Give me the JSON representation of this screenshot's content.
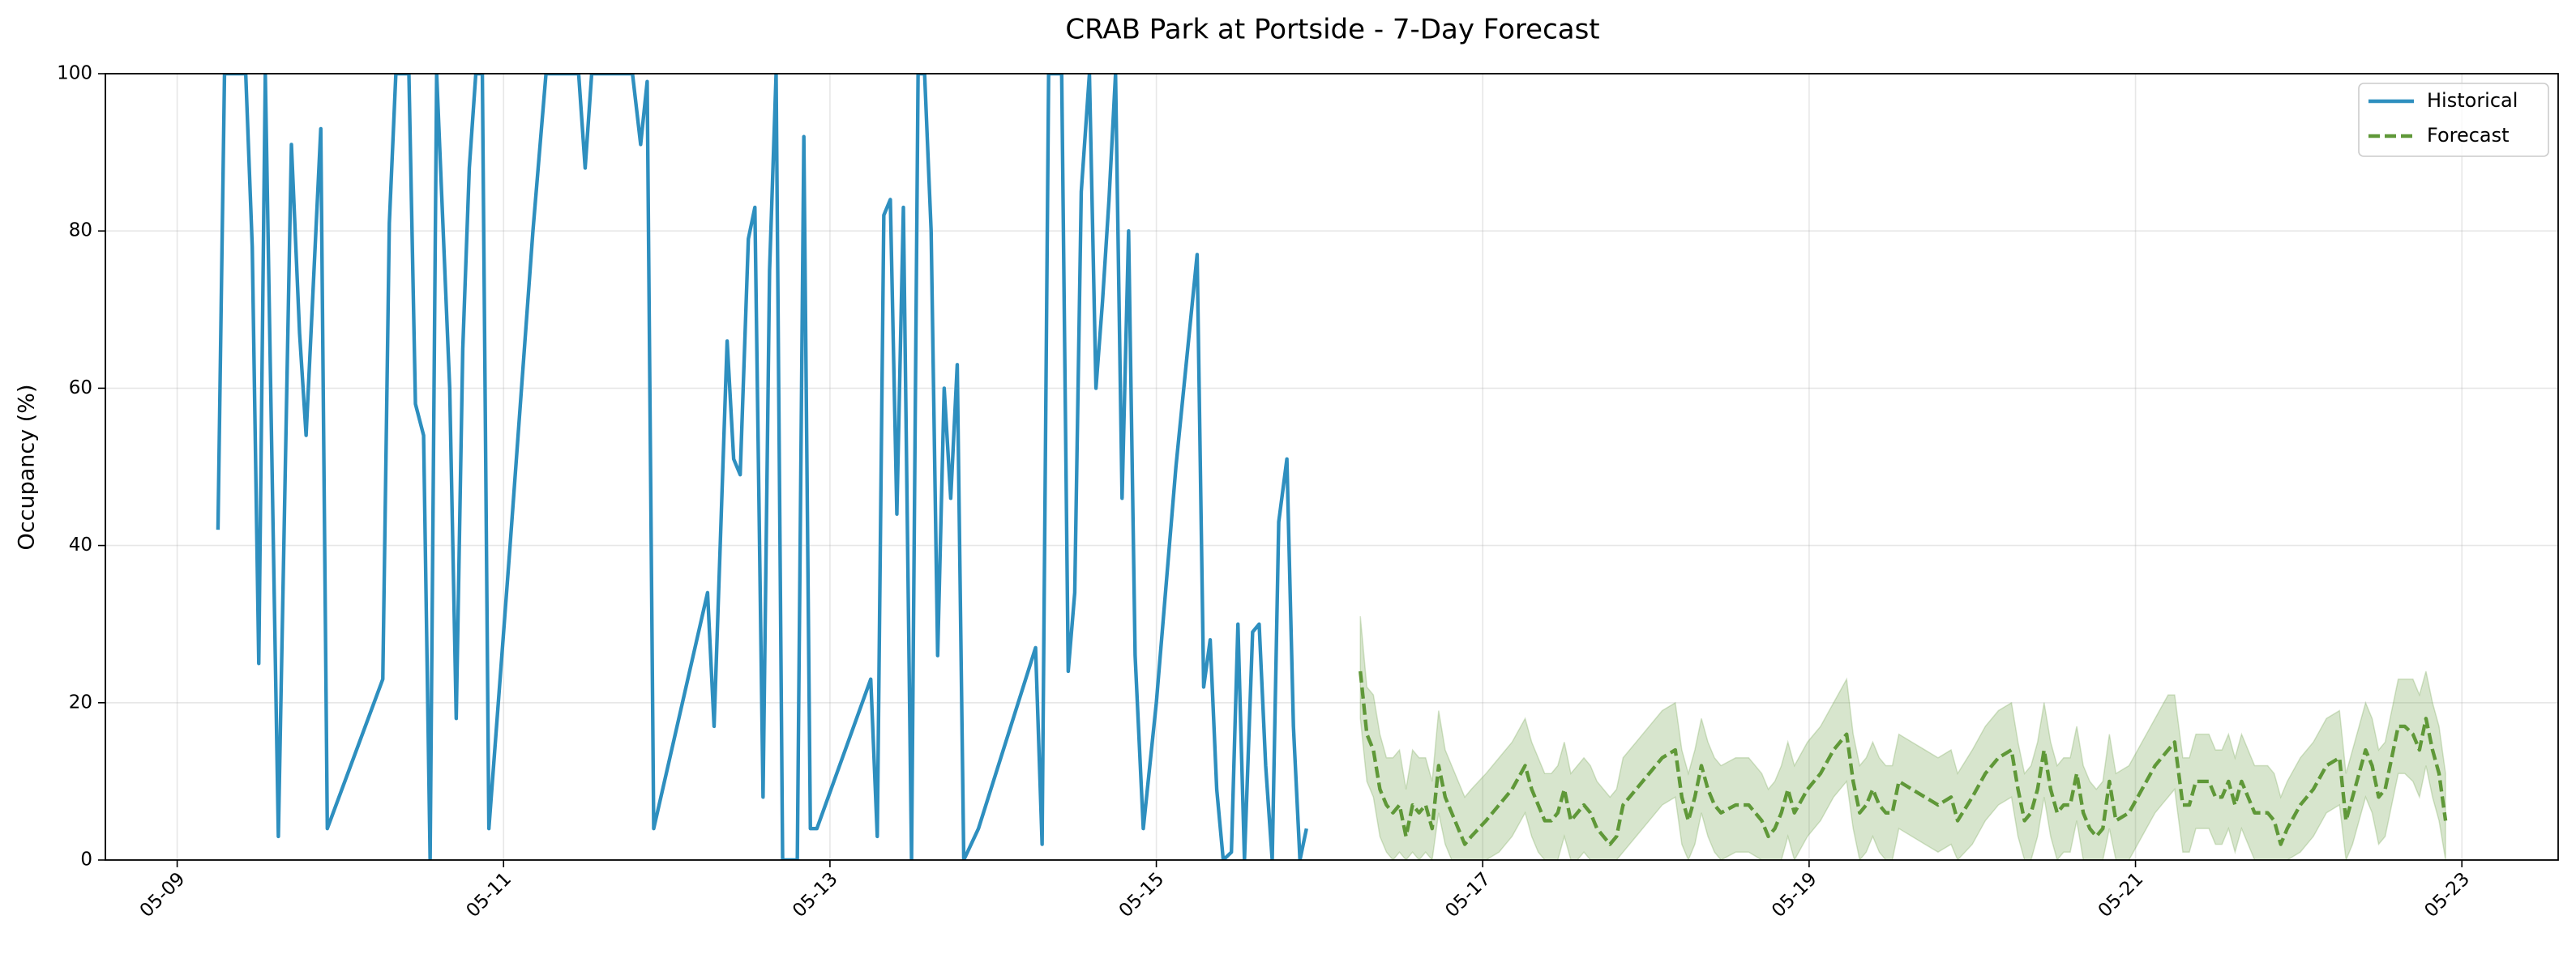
{
  "chart_data": {
    "type": "line",
    "title": "CRAB Park at Portside - 7-Day Forecast",
    "y_label": "Occupancy (%)",
    "xlim": [
      8.56,
      23.59
    ],
    "xticks": [
      {
        "value": 9,
        "label": "05-09"
      },
      {
        "value": 11,
        "label": "05-11"
      },
      {
        "value": 13,
        "label": "05-13"
      },
      {
        "value": 15,
        "label": "05-15"
      },
      {
        "value": 17,
        "label": "05-17"
      },
      {
        "value": 19,
        "label": "05-19"
      },
      {
        "value": 21,
        "label": "05-21"
      },
      {
        "value": 23,
        "label": "05-23"
      }
    ],
    "ylim": [
      0,
      100
    ],
    "yticks": [
      0,
      20,
      40,
      60,
      80,
      100
    ],
    "grid": true,
    "legend": "upper right",
    "series": [
      {
        "name": "Historical",
        "color": "#2e8fbf",
        "dash": false,
        "x": [
          9.25,
          9.29,
          9.42,
          9.46,
          9.5,
          9.54,
          9.62,
          9.7,
          9.75,
          9.79,
          9.88,
          9.92,
          10.26,
          10.3,
          10.34,
          10.42,
          10.46,
          10.51,
          10.55,
          10.59,
          10.67,
          10.71,
          10.75,
          10.79,
          10.83,
          10.87,
          10.91,
          11.04,
          11.18,
          11.26,
          11.46,
          11.5,
          11.54,
          11.79,
          11.84,
          11.88,
          11.92,
          12.25,
          12.29,
          12.37,
          12.41,
          12.45,
          12.5,
          12.54,
          12.59,
          12.63,
          12.67,
          12.71,
          12.8,
          12.84,
          12.88,
          12.92,
          13.25,
          13.29,
          13.33,
          13.37,
          13.41,
          13.45,
          13.5,
          13.54,
          13.58,
          13.62,
          13.66,
          13.7,
          13.74,
          13.78,
          13.82,
          13.91,
          14.26,
          14.3,
          14.34,
          14.42,
          14.46,
          14.5,
          14.54,
          14.59,
          14.63,
          14.67,
          14.71,
          14.75,
          14.79,
          14.83,
          14.87,
          14.92,
          15.0,
          15.12,
          15.25,
          15.29,
          15.33,
          15.37,
          15.41,
          15.46,
          15.5,
          15.54,
          15.59,
          15.63,
          15.67,
          15.71,
          15.75,
          15.8,
          15.84,
          15.88,
          15.92
        ],
        "values": [
          42,
          100,
          100,
          78,
          25,
          100,
          3,
          91,
          67,
          54,
          93,
          4,
          23,
          81,
          100,
          100,
          58,
          54,
          0,
          100,
          60,
          18,
          65,
          88,
          100,
          100,
          4,
          40,
          80,
          100,
          100,
          88,
          100,
          100,
          91,
          99,
          4,
          34,
          17,
          66,
          51,
          49,
          79,
          83,
          8,
          75,
          100,
          0,
          0,
          92,
          4,
          4,
          23,
          3,
          82,
          84,
          44,
          83,
          0,
          100,
          100,
          80,
          26,
          60,
          46,
          63,
          0,
          4,
          27,
          2,
          100,
          100,
          24,
          34,
          85,
          100,
          60,
          71,
          84,
          100,
          46,
          80,
          26,
          4,
          20,
          50,
          77,
          22,
          28,
          9,
          0,
          1,
          30,
          0,
          29,
          30,
          12,
          0,
          43,
          51,
          17,
          0,
          4
        ]
      },
      {
        "name": "Forecast",
        "color": "#5f9838",
        "dash": true,
        "x": [
          16.25,
          16.29,
          16.33,
          16.37,
          16.41,
          16.45,
          16.49,
          16.53,
          16.57,
          16.61,
          16.65,
          16.69,
          16.73,
          16.77,
          16.81,
          16.85,
          16.89,
          16.93,
          17.02,
          17.1,
          17.18,
          17.26,
          17.3,
          17.34,
          17.38,
          17.42,
          17.46,
          17.5,
          17.54,
          17.58,
          17.62,
          17.66,
          17.7,
          17.74,
          17.78,
          17.82,
          17.86,
          17.94,
          18.02,
          18.1,
          18.18,
          18.22,
          18.26,
          18.3,
          18.34,
          18.38,
          18.42,
          18.46,
          18.55,
          18.63,
          18.71,
          18.75,
          18.79,
          18.83,
          18.87,
          18.91,
          18.99,
          19.07,
          19.15,
          19.23,
          19.27,
          19.31,
          19.35,
          19.39,
          19.43,
          19.47,
          19.51,
          19.55,
          19.63,
          19.71,
          19.79,
          19.87,
          19.91,
          20.0,
          20.08,
          20.16,
          20.24,
          20.28,
          20.32,
          20.36,
          20.4,
          20.44,
          20.48,
          20.52,
          20.56,
          20.6,
          20.64,
          20.68,
          20.72,
          20.76,
          20.8,
          20.84,
          20.88,
          20.96,
          21.04,
          21.12,
          21.2,
          21.24,
          21.29,
          21.33,
          21.37,
          21.41,
          21.45,
          21.49,
          21.53,
          21.57,
          21.61,
          21.65,
          21.69,
          21.73,
          21.77,
          21.81,
          21.85,
          21.89,
          21.93,
          22.01,
          22.09,
          22.17,
          22.25,
          22.29,
          22.33,
          22.37,
          22.41,
          22.45,
          22.49,
          22.53,
          22.57,
          22.61,
          22.65,
          22.7,
          22.74,
          22.78,
          22.82,
          22.86,
          22.9
        ],
        "values": [
          24,
          16,
          14,
          9,
          7,
          6,
          7,
          3,
          7,
          6,
          7,
          4,
          12,
          8,
          6,
          4,
          2,
          3,
          5,
          7,
          9,
          12,
          9,
          7,
          5,
          5,
          6,
          9,
          5,
          6,
          7,
          6,
          4,
          3,
          2,
          3,
          7,
          9,
          11,
          13,
          14,
          8,
          5,
          8,
          12,
          9,
          7,
          6,
          7,
          7,
          5,
          3,
          4,
          6,
          9,
          6,
          9,
          11,
          14,
          16,
          10,
          6,
          7,
          9,
          7,
          6,
          6,
          10,
          9,
          8,
          7,
          8,
          5,
          8,
          11,
          13,
          14,
          9,
          5,
          6,
          9,
          14,
          9,
          6,
          7,
          7,
          11,
          6,
          4,
          3,
          4,
          10,
          5,
          6,
          9,
          12,
          14,
          15,
          7,
          7,
          10,
          10,
          10,
          8,
          8,
          10,
          7,
          10,
          8,
          6,
          6,
          6,
          5,
          2,
          4,
          7,
          9,
          12,
          13,
          5,
          8,
          11,
          14,
          12,
          8,
          9,
          13,
          17,
          17,
          16,
          14,
          18,
          14,
          11,
          5
        ],
        "lower": [
          18,
          10,
          8,
          3,
          1,
          0,
          1,
          0,
          1,
          0,
          1,
          0,
          6,
          2,
          0,
          0,
          0,
          0,
          0,
          1,
          3,
          6,
          3,
          1,
          0,
          0,
          0,
          3,
          0,
          0,
          1,
          0,
          0,
          0,
          0,
          0,
          1,
          3,
          5,
          7,
          8,
          2,
          0,
          2,
          6,
          3,
          1,
          0,
          1,
          1,
          0,
          0,
          0,
          0,
          3,
          0,
          3,
          5,
          8,
          10,
          4,
          0,
          1,
          3,
          1,
          0,
          0,
          4,
          3,
          2,
          1,
          2,
          0,
          2,
          5,
          7,
          8,
          3,
          0,
          0,
          3,
          8,
          3,
          0,
          1,
          1,
          5,
          0,
          0,
          0,
          0,
          4,
          0,
          0,
          3,
          6,
          8,
          9,
          1,
          1,
          4,
          4,
          4,
          2,
          2,
          4,
          1,
          4,
          2,
          0,
          0,
          0,
          0,
          0,
          0,
          1,
          3,
          6,
          7,
          0,
          2,
          5,
          8,
          6,
          2,
          3,
          7,
          11,
          11,
          10,
          8,
          12,
          8,
          5,
          0
        ],
        "upper": [
          31,
          22,
          21,
          16,
          13,
          13,
          14,
          9,
          14,
          13,
          13,
          10,
          19,
          14,
          12,
          10,
          8,
          9,
          11,
          13,
          15,
          18,
          15,
          13,
          11,
          11,
          12,
          15,
          11,
          12,
          13,
          12,
          10,
          9,
          8,
          9,
          13,
          15,
          17,
          19,
          20,
          14,
          11,
          14,
          18,
          15,
          13,
          12,
          13,
          13,
          11,
          9,
          10,
          12,
          15,
          12,
          15,
          17,
          20,
          23,
          16,
          12,
          13,
          15,
          13,
          12,
          12,
          16,
          15,
          14,
          13,
          14,
          11,
          14,
          17,
          19,
          20,
          15,
          11,
          12,
          15,
          20,
          15,
          12,
          13,
          13,
          17,
          12,
          10,
          9,
          10,
          16,
          11,
          12,
          15,
          18,
          21,
          21,
          13,
          13,
          16,
          16,
          16,
          14,
          14,
          16,
          13,
          16,
          14,
          12,
          12,
          12,
          11,
          8,
          10,
          13,
          15,
          18,
          19,
          11,
          14,
          17,
          20,
          18,
          14,
          15,
          19,
          23,
          23,
          23,
          21,
          24,
          20,
          17,
          11
        ]
      }
    ]
  }
}
